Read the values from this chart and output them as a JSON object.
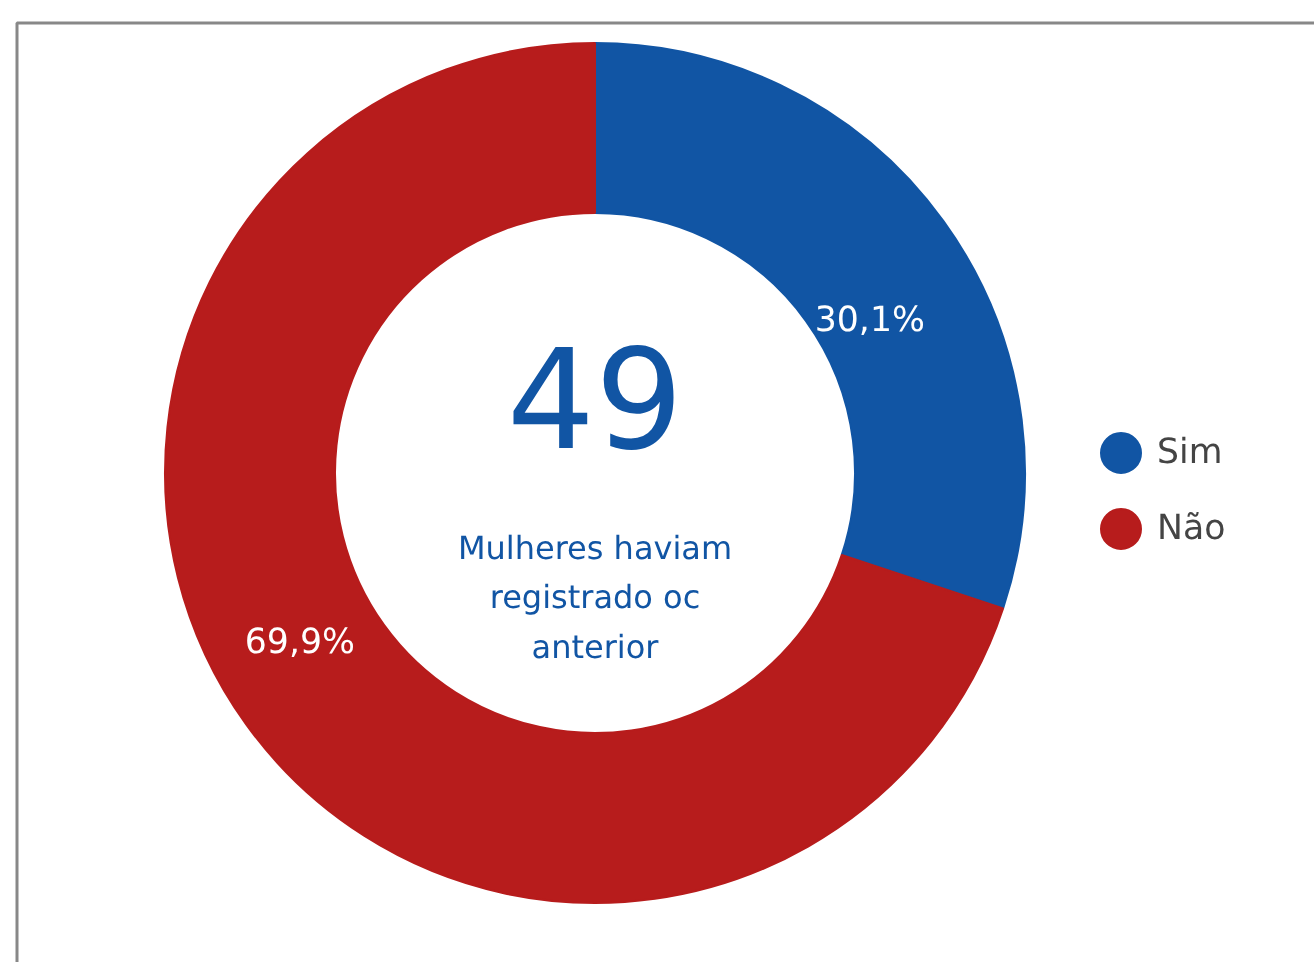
{
  "chart_data": {
    "type": "donut",
    "categories": [
      "Sim",
      "Não"
    ],
    "values": [
      30.1,
      69.9
    ],
    "colors": [
      "#1155a4",
      "#b71c1c"
    ],
    "value_labels": [
      "30,1%",
      "69,9%"
    ],
    "annotations": [
      "49",
      "Mulheres haviam\nregistrado oc\nanterior"
    ],
    "legend": "right"
  }
}
